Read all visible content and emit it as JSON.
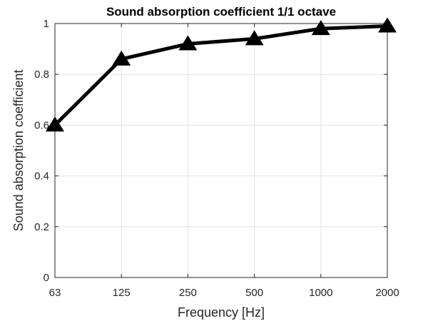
{
  "chart_data": {
    "type": "line",
    "title": "Sound absorption coefficient 1/1 octave",
    "xlabel": "Frequency [Hz]",
    "ylabel": "Sound absorption coefficient",
    "categories": [
      "63",
      "125",
      "250",
      "500",
      "1000",
      "2000"
    ],
    "series": [
      {
        "values": [
          0.6,
          0.86,
          0.92,
          0.94,
          0.98,
          0.99
        ]
      }
    ],
    "ylim": [
      0,
      1
    ],
    "yticks": [
      "0",
      "0.2",
      "0.4",
      "0.6",
      "0.8",
      "1"
    ],
    "grid": true,
    "marker": "triangle",
    "line_color": "#000000"
  }
}
